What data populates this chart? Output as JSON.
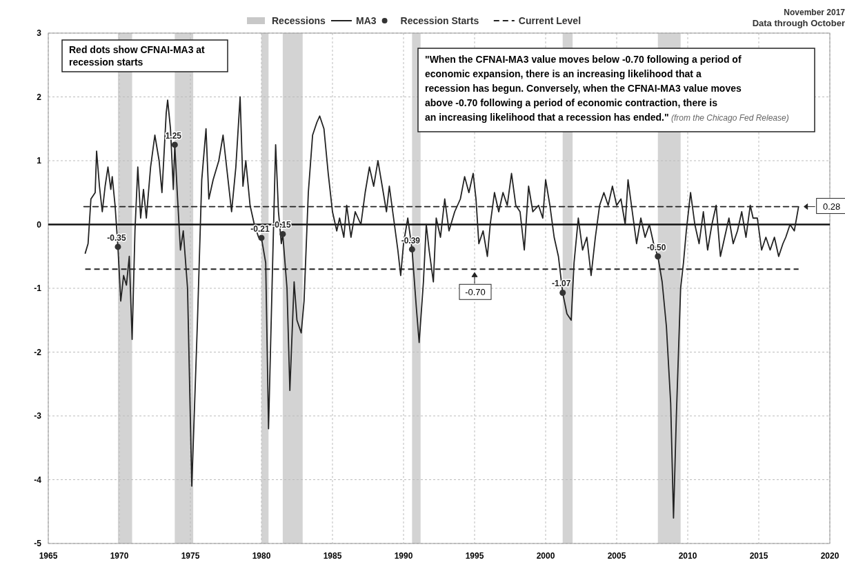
{
  "chart_data": {
    "type": "line",
    "subtitle": "Data through October",
    "annotations": [
      "November 2017",
      "Red dots show CFNAI-MA3 at recession starts",
      "\"When the CFNAI-MA3 value moves below -0.70 following a period of economic expansion, there is an increasing likelihood that a recession has begun. Conversely, when the CFNAI-MA3 value moves above -0.70 following a period of economic contraction, there is an increasing likelihood that a recession has ended.\"",
      "(from the Chicago Fed Release)"
    ],
    "xlim": [
      1965,
      2020
    ],
    "xticks": [
      1965,
      1970,
      1975,
      1980,
      1985,
      1990,
      1995,
      2000,
      2005,
      2010,
      2015,
      2020
    ],
    "ylim": [
      -5,
      3
    ],
    "yticks": [
      -5,
      -4,
      -3,
      -2,
      -1,
      0,
      1,
      2,
      3
    ],
    "grid": true,
    "legend": "top",
    "bands": [
      {
        "axis": "x",
        "from": 1969.9,
        "to": 1970.9,
        "label": "Recessions",
        "color": "#c8c8c8"
      },
      {
        "axis": "x",
        "from": 1973.9,
        "to": 1975.2,
        "color": "#c8c8c8"
      },
      {
        "axis": "x",
        "from": 1980.0,
        "to": 1980.5,
        "color": "#c8c8c8"
      },
      {
        "axis": "x",
        "from": 1981.5,
        "to": 1982.9,
        "color": "#c8c8c8"
      },
      {
        "axis": "x",
        "from": 1990.6,
        "to": 1991.2,
        "color": "#c8c8c8"
      },
      {
        "axis": "x",
        "from": 2001.2,
        "to": 2001.9,
        "color": "#c8c8c8"
      },
      {
        "axis": "x",
        "from": 2007.9,
        "to": 2009.5,
        "color": "#c8c8c8"
      }
    ],
    "ref_lines": [
      {
        "axis": "y",
        "value": -0.7,
        "label": "-0.70",
        "line_style": "dashed",
        "color": "#222222"
      }
    ],
    "series": [
      {
        "name": "MA3",
        "type": "line",
        "color": "#222222",
        "line_style": "solid",
        "x": [
          1967.6,
          1967.8,
          1968.0,
          1968.3,
          1968.4,
          1968.6,
          1968.8,
          1969.0,
          1969.2,
          1969.4,
          1969.5,
          1969.7,
          1969.9,
          1970.1,
          1970.3,
          1970.5,
          1970.7,
          1970.9,
          1971.1,
          1971.3,
          1971.5,
          1971.7,
          1971.9,
          1972.2,
          1972.5,
          1972.8,
          1973.0,
          1973.3,
          1973.4,
          1973.6,
          1973.8,
          1973.9,
          1974.1,
          1974.3,
          1974.5,
          1974.8,
          1975.1,
          1975.5,
          1975.8,
          1976.1,
          1976.3,
          1976.6,
          1977.0,
          1977.3,
          1977.6,
          1977.9,
          1978.2,
          1978.5,
          1978.7,
          1978.9,
          1979.2,
          1979.5,
          1979.8,
          1980.0,
          1980.3,
          1980.5,
          1980.8,
          1981.0,
          1981.2,
          1981.4,
          1981.5,
          1981.8,
          1982.0,
          1982.3,
          1982.5,
          1982.8,
          1983.0,
          1983.3,
          1983.6,
          1983.9,
          1984.1,
          1984.4,
          1984.7,
          1985.0,
          1985.3,
          1985.5,
          1985.8,
          1986.0,
          1986.3,
          1986.6,
          1987.0,
          1987.3,
          1987.6,
          1987.9,
          1988.2,
          1988.5,
          1988.8,
          1989.0,
          1989.3,
          1989.6,
          1989.8,
          1990.0,
          1990.3,
          1990.6,
          1990.9,
          1991.1,
          1991.4,
          1991.6,
          1991.8,
          1992.1,
          1992.3,
          1992.6,
          1992.9,
          1993.2,
          1993.6,
          1994.0,
          1994.3,
          1994.6,
          1994.9,
          1995.1,
          1995.3,
          1995.6,
          1995.9,
          1996.1,
          1996.4,
          1996.7,
          1997.0,
          1997.3,
          1997.6,
          1997.9,
          1998.2,
          1998.5,
          1998.8,
          1999.1,
          1999.5,
          1999.8,
          2000.0,
          2000.3,
          2000.6,
          2000.9,
          2001.2,
          2001.5,
          2001.8,
          2002.0,
          2002.3,
          2002.6,
          2002.9,
          2003.2,
          2003.5,
          2003.8,
          2004.1,
          2004.4,
          2004.7,
          2005.0,
          2005.3,
          2005.6,
          2005.8,
          2006.1,
          2006.4,
          2006.7,
          2007.0,
          2007.3,
          2007.6,
          2007.9,
          2008.2,
          2008.5,
          2008.8,
          2009.0,
          2009.2,
          2009.5,
          2009.7,
          2009.9,
          2010.2,
          2010.5,
          2010.8,
          2011.1,
          2011.4,
          2011.7,
          2012.0,
          2012.3,
          2012.6,
          2012.9,
          2013.2,
          2013.5,
          2013.8,
          2014.1,
          2014.4,
          2014.6,
          2014.9,
          2015.2,
          2015.5,
          2015.8,
          2016.1,
          2016.4,
          2016.7,
          2016.9,
          2017.2,
          2017.5,
          2017.8
        ],
        "values": [
          -0.45,
          -0.3,
          0.4,
          0.5,
          1.15,
          0.6,
          0.2,
          0.6,
          0.9,
          0.55,
          0.75,
          0.3,
          -0.35,
          -1.2,
          -0.8,
          -0.95,
          -0.5,
          -1.8,
          -0.1,
          0.9,
          0.1,
          0.55,
          0.1,
          0.9,
          1.4,
          1.0,
          0.5,
          1.75,
          1.95,
          1.5,
          0.55,
          1.25,
          0.4,
          -0.4,
          -0.1,
          -1.0,
          -4.1,
          -1.5,
          0.7,
          1.5,
          0.4,
          0.7,
          1.0,
          1.4,
          0.8,
          0.2,
          0.9,
          2.0,
          0.6,
          1.0,
          0.3,
          0.0,
          -0.2,
          -0.21,
          -0.6,
          -3.2,
          -0.5,
          1.25,
          0.2,
          -0.3,
          -0.15,
          -1.0,
          -2.6,
          -0.9,
          -1.5,
          -1.7,
          -1.2,
          0.5,
          1.4,
          1.6,
          1.7,
          1.5,
          0.8,
          0.2,
          -0.1,
          0.1,
          -0.2,
          0.3,
          -0.2,
          0.2,
          0.0,
          0.5,
          0.9,
          0.6,
          1.0,
          0.6,
          0.2,
          0.6,
          0.1,
          -0.4,
          -0.8,
          -0.3,
          0.1,
          -0.39,
          -1.3,
          -1.85,
          -0.9,
          0.0,
          -0.4,
          -0.9,
          0.1,
          -0.2,
          0.4,
          -0.1,
          0.2,
          0.4,
          0.75,
          0.5,
          0.8,
          0.4,
          -0.3,
          -0.1,
          -0.5,
          0.0,
          0.5,
          0.2,
          0.5,
          0.3,
          0.8,
          0.3,
          0.2,
          -0.4,
          0.6,
          0.2,
          0.3,
          0.1,
          0.7,
          0.3,
          -0.2,
          -0.5,
          -1.07,
          -1.4,
          -1.5,
          -0.6,
          0.1,
          -0.4,
          -0.2,
          -0.8,
          -0.2,
          0.3,
          0.5,
          0.3,
          0.6,
          0.3,
          0.4,
          0.0,
          0.7,
          0.2,
          -0.3,
          0.1,
          -0.2,
          0.0,
          -0.3,
          -0.5,
          -0.9,
          -1.6,
          -2.8,
          -4.6,
          -3.0,
          -1.0,
          -0.6,
          -0.1,
          0.5,
          0.0,
          -0.3,
          0.2,
          -0.4,
          0.0,
          0.3,
          -0.5,
          -0.2,
          0.1,
          -0.3,
          -0.1,
          0.2,
          -0.2,
          0.3,
          0.1,
          0.1,
          -0.4,
          -0.2,
          -0.4,
          -0.2,
          -0.5,
          -0.3,
          -0.2,
          0.0,
          -0.1,
          0.28
        ]
      },
      {
        "name": "Recession Starts",
        "type": "scatter",
        "color": "#333333",
        "marker": "circle",
        "x": [
          1969.9,
          1973.9,
          1980.0,
          1981.5,
          1990.6,
          2001.2,
          2007.9
        ],
        "values": [
          -0.35,
          1.25,
          -0.21,
          -0.15,
          -0.39,
          -1.07,
          -0.5
        ],
        "value_labels": [
          "-0.35",
          "1.25",
          "-0.21",
          "-0.15",
          "-0.39",
          "-1.07",
          "-0.50"
        ]
      },
      {
        "name": "Current Level",
        "type": "line",
        "color": "#222222",
        "line_style": "dashed",
        "x": [
          1967.5,
          2017.8
        ],
        "values": [
          0.28,
          0.28
        ],
        "value_labels": [
          null,
          "0.28"
        ]
      }
    ]
  }
}
